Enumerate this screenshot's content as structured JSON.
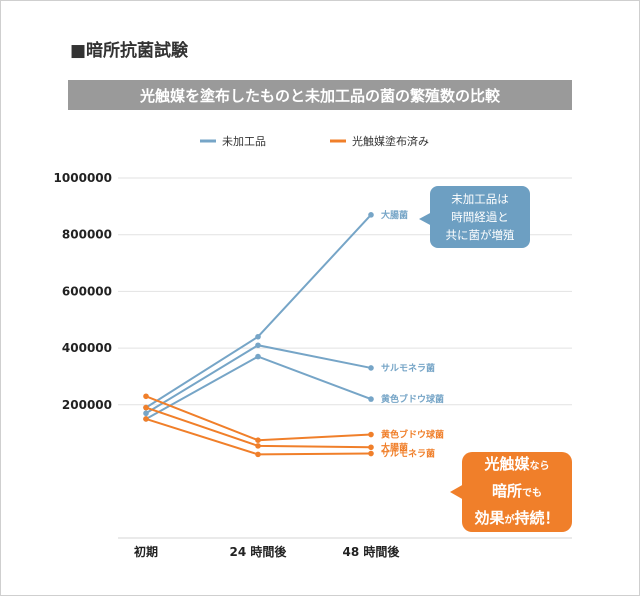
{
  "section_title": "■暗所抗菌試験",
  "banner_title": "光触媒を塗布したものと未加工品の菌の繁殖数の比較",
  "colors": {
    "untreated": "#76a5c7",
    "coated": "#f07f2a",
    "grid": "#e2e2e2"
  },
  "chart_data": {
    "type": "line",
    "title": "光触媒を塗布したものと未加工品の菌の繁殖数の比較",
    "x": [
      "初期",
      "24 時間後",
      "48 時間後"
    ],
    "ylim": [
      -270000,
      1000000
    ],
    "yticks": [
      "1000000",
      "800000",
      "600000",
      "400000",
      "200000"
    ],
    "ytick_values": [
      1000000,
      800000,
      600000,
      400000,
      200000
    ],
    "grid": true,
    "legend": "top",
    "legend_entries": [
      "未加工品",
      "光触媒塗布済み"
    ],
    "series": [
      {
        "group": "未加工品",
        "name": "大腸菌",
        "values": [
          190000,
          440000,
          870000
        ]
      },
      {
        "group": "未加工品",
        "name": "サルモネラ菌",
        "values": [
          170000,
          410000,
          330000
        ]
      },
      {
        "group": "未加工品",
        "name": "黄色ブドウ球菌",
        "values": [
          150000,
          370000,
          220000
        ]
      },
      {
        "group": "光触媒塗布済み",
        "name": "黄色ブドウ球菌",
        "values": [
          230000,
          75000,
          95000
        ]
      },
      {
        "group": "光触媒塗布済み",
        "name": "大腸菌",
        "values": [
          190000,
          55000,
          50000
        ]
      },
      {
        "group": "光触媒塗布済み",
        "name": "サルモネラ菌",
        "values": [
          150000,
          25000,
          28000
        ]
      }
    ],
    "annotations": {
      "untreated": [
        "未加工品は",
        "時間経過と",
        "共に菌が増殖"
      ],
      "coated": [
        [
          {
            "t": "光触媒",
            "s": "big"
          },
          {
            "t": "なら",
            "s": "small"
          }
        ],
        [
          {
            "t": "暗所",
            "s": "big"
          },
          {
            "t": "でも",
            "s": "small"
          }
        ],
        [
          {
            "t": "効果",
            "s": "big"
          },
          {
            "t": "が",
            "s": "small"
          },
          {
            "t": "持続！",
            "s": "big"
          }
        ]
      ]
    }
  }
}
